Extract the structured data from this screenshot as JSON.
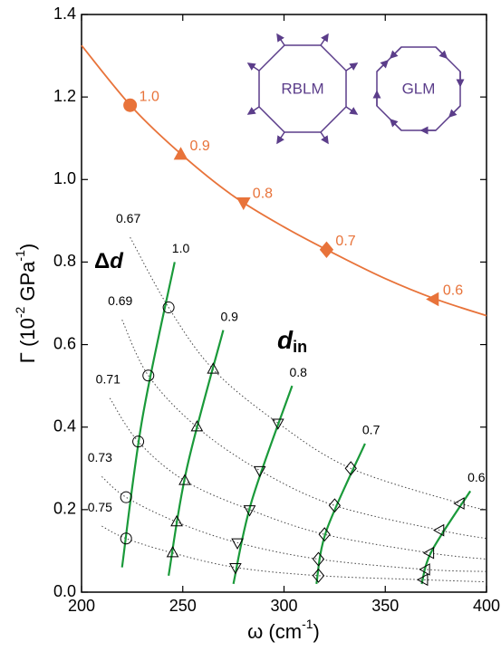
{
  "chart_data": {
    "type": "line",
    "xlabel": [
      "ω (cm",
      "-1",
      ")"
    ],
    "ylabel": [
      "Γ (10",
      "-2",
      " GPa",
      "-1",
      ")"
    ],
    "xlim": [
      200,
      400
    ],
    "ylim": [
      0,
      1.4
    ],
    "xticks": [
      200,
      250,
      300,
      350,
      400
    ],
    "yticks": [
      {
        "value": 0,
        "label": "0.0"
      },
      {
        "value": 0.2,
        "label": "0.2"
      },
      {
        "value": 0.4,
        "label": "0.4"
      },
      {
        "value": 0.6,
        "label": "0.6"
      },
      {
        "value": 0.8,
        "label": "0.8"
      },
      {
        "value": 1.0,
        "label": "1.0"
      },
      {
        "value": 1.2,
        "label": "1.2"
      },
      {
        "value": 1.4,
        "label": "1.4"
      }
    ],
    "annotations": {
      "delta_d": [
        "Δ",
        "d"
      ],
      "d_in": [
        "d",
        "in"
      ],
      "octagons": [
        "RBLM",
        "GLM"
      ]
    },
    "orange_curve": {
      "color": "#e8733a",
      "x": [
        200,
        225,
        250,
        275,
        300,
        325,
        350,
        375,
        400
      ],
      "values": [
        1.325,
        1.175,
        1.058,
        0.96,
        0.885,
        0.82,
        0.76,
        0.71,
        0.67
      ]
    },
    "orange_points": {
      "color": "#e8733a",
      "x": [
        224,
        249,
        280,
        321,
        374
      ],
      "values": [
        1.18,
        1.06,
        0.945,
        0.83,
        0.71
      ],
      "labels": [
        "1.0",
        "0.9",
        "0.8",
        "0.7",
        "0.6"
      ],
      "markers": [
        "circle",
        "triangle-up",
        "triangle-down",
        "diamond",
        "triangle-left"
      ]
    },
    "series": [
      {
        "label": "1.0",
        "marker": "circle",
        "color": "#1a9a3a",
        "line_x": [
          220,
          230,
          246
        ],
        "line_y": [
          0.06,
          0.42,
          0.8
        ],
        "x": [
          222,
          222,
          228,
          233,
          243
        ],
        "values": [
          0.13,
          0.23,
          0.365,
          0.525,
          0.69
        ]
      },
      {
        "label": "0.9",
        "marker": "triangle-up",
        "color": "#1a9a3a",
        "line_x": [
          243,
          252,
          270
        ],
        "line_y": [
          0.04,
          0.3,
          0.635
        ],
        "x": [
          245,
          247,
          251,
          257,
          265
        ],
        "values": [
          0.095,
          0.17,
          0.27,
          0.4,
          0.54
        ]
      },
      {
        "label": "0.8",
        "marker": "triangle-down",
        "color": "#1a9a3a",
        "line_x": [
          275,
          284,
          304
        ],
        "line_y": [
          0.02,
          0.22,
          0.5
        ],
        "x": [
          276,
          277,
          283,
          288,
          297
        ],
        "values": [
          0.06,
          0.12,
          0.2,
          0.295,
          0.41
        ]
      },
      {
        "label": "0.7",
        "marker": "diamond",
        "color": "#1a9a3a",
        "line_x": [
          316,
          321,
          340
        ],
        "line_y": [
          0.02,
          0.15,
          0.36
        ],
        "x": [
          317,
          317,
          320,
          325,
          333
        ],
        "values": [
          0.04,
          0.08,
          0.14,
          0.21,
          0.3
        ]
      },
      {
        "label": "0.6",
        "marker": "triangle-left",
        "color": "#1a9a3a",
        "line_x": [
          368,
          373,
          392
        ],
        "line_y": [
          0.02,
          0.1,
          0.245
        ],
        "x": [
          369,
          370,
          372,
          377,
          387
        ],
        "values": [
          0.03,
          0.055,
          0.095,
          0.15,
          0.215
        ]
      }
    ],
    "dotted_curves": [
      {
        "label": "0.67",
        "x": [
          224,
          243,
          265,
          297,
          333,
          387,
          400
        ],
        "values": [
          0.86,
          0.69,
          0.54,
          0.41,
          0.3,
          0.215,
          0.2
        ]
      },
      {
        "label": "0.69",
        "x": [
          220,
          233,
          257,
          288,
          325,
          377,
          400
        ],
        "values": [
          0.66,
          0.525,
          0.4,
          0.295,
          0.21,
          0.15,
          0.13
        ]
      },
      {
        "label": "0.71",
        "x": [
          214,
          228,
          251,
          283,
          320,
          372,
          400
        ],
        "values": [
          0.47,
          0.365,
          0.27,
          0.2,
          0.14,
          0.095,
          0.08
        ]
      },
      {
        "label": "0.73",
        "x": [
          210,
          222,
          247,
          277,
          317,
          370,
          400
        ],
        "values": [
          0.28,
          0.23,
          0.17,
          0.12,
          0.08,
          0.055,
          0.05
        ]
      },
      {
        "label": "0.75",
        "x": [
          210,
          222,
          245,
          276,
          317,
          369,
          400
        ],
        "values": [
          0.16,
          0.13,
          0.095,
          0.06,
          0.04,
          0.03,
          0.025
        ]
      }
    ]
  }
}
